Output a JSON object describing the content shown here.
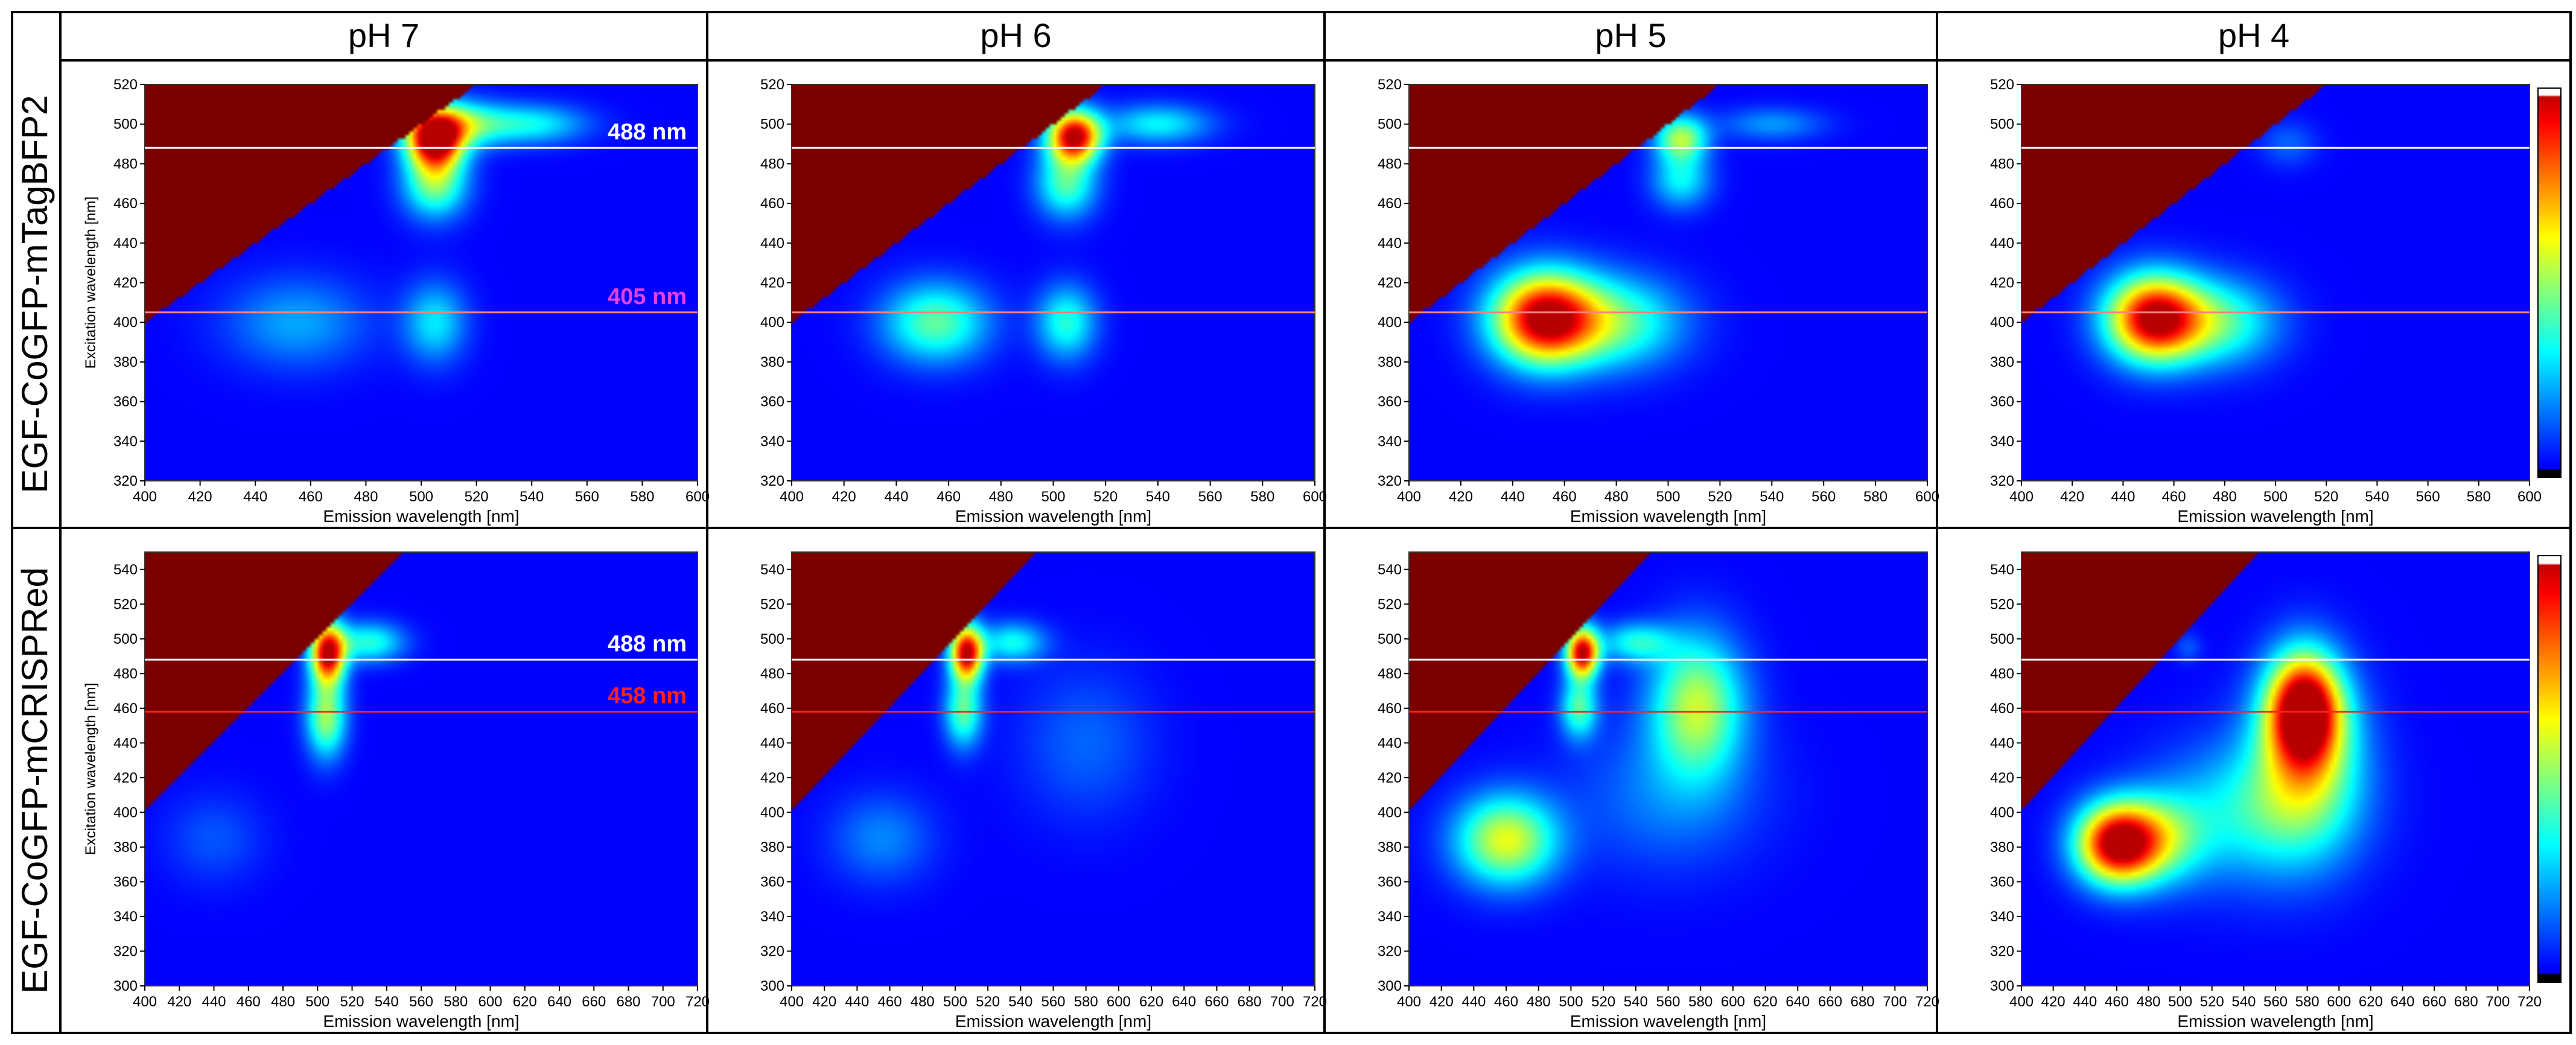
{
  "columns": [
    "pH 7",
    "pH 6",
    "pH 5",
    "pH 4"
  ],
  "rows": [
    "EGF-CoGFP-mTagBFP2",
    "EGF-CoGFP-mCRISPRed"
  ],
  "colors": {
    "background_low": "#0000ff",
    "masked_region": "#7a0000",
    "line_488": "#ffffff",
    "label_405": "#e040e0",
    "line_405": "#ff8080",
    "line_458": "#ff2020",
    "label_458": "#ff2020"
  },
  "annotations": {
    "l488": "488 nm",
    "l405": "405 nm",
    "l458": "458 nm"
  },
  "chart_data": [
    {
      "type": "heatmap",
      "row": "EGF-CoGFP-mTagBFP2",
      "title": "pH 7",
      "xlabel": "Emission wavelength [nm]",
      "ylabel": "Excitation wavelength [nm]",
      "xlim": [
        400,
        600
      ],
      "ylim": [
        320,
        520
      ],
      "xticks": [
        400,
        420,
        440,
        460,
        480,
        500,
        520,
        540,
        560,
        580,
        600
      ],
      "yticks": [
        320,
        340,
        360,
        380,
        400,
        420,
        440,
        460,
        480,
        500,
        520
      ],
      "lines": [
        {
          "y": 488,
          "label": "488 nm"
        },
        {
          "y": 405,
          "label": "405 nm"
        }
      ],
      "blobs": [
        {
          "em": 505,
          "ex": 492,
          "sx": 7,
          "sy": 10,
          "a": 1.0
        },
        {
          "em": 512,
          "ex": 500,
          "sx": 12,
          "sy": 8,
          "a": 0.45
        },
        {
          "em": 540,
          "ex": 500,
          "sx": 14,
          "sy": 7,
          "a": 0.3
        },
        {
          "em": 505,
          "ex": 470,
          "sx": 8,
          "sy": 12,
          "a": 0.45
        },
        {
          "em": 505,
          "ex": 400,
          "sx": 8,
          "sy": 14,
          "a": 0.28
        },
        {
          "em": 455,
          "ex": 400,
          "sx": 18,
          "sy": 16,
          "a": 0.2
        }
      ]
    },
    {
      "type": "heatmap",
      "row": "EGF-CoGFP-mTagBFP2",
      "title": "pH 6",
      "xlabel": "Emission wavelength [nm]",
      "ylabel": "",
      "xlim": [
        400,
        600
      ],
      "ylim": [
        320,
        520
      ],
      "xticks": [
        400,
        420,
        440,
        460,
        480,
        500,
        520,
        540,
        560,
        580,
        600
      ],
      "yticks": [
        320,
        340,
        360,
        380,
        400,
        420,
        440,
        460,
        480,
        500,
        520
      ],
      "lines": [
        {
          "y": 488
        },
        {
          "y": 405
        }
      ],
      "blobs": [
        {
          "em": 508,
          "ex": 494,
          "sx": 7,
          "sy": 9,
          "a": 1.0
        },
        {
          "em": 540,
          "ex": 500,
          "sx": 14,
          "sy": 7,
          "a": 0.3
        },
        {
          "em": 505,
          "ex": 470,
          "sx": 8,
          "sy": 12,
          "a": 0.4
        },
        {
          "em": 505,
          "ex": 400,
          "sx": 8,
          "sy": 13,
          "a": 0.35
        },
        {
          "em": 455,
          "ex": 400,
          "sx": 14,
          "sy": 14,
          "a": 0.42
        }
      ]
    },
    {
      "type": "heatmap",
      "row": "EGF-CoGFP-mTagBFP2",
      "title": "pH 5",
      "xlabel": "Emission wavelength [nm]",
      "ylabel": "",
      "xlim": [
        400,
        600
      ],
      "ylim": [
        320,
        520
      ],
      "xticks": [
        400,
        420,
        440,
        460,
        480,
        500,
        520,
        540,
        560,
        580,
        600
      ],
      "yticks": [
        320,
        340,
        360,
        380,
        400,
        420,
        440,
        460,
        480,
        500,
        520
      ],
      "lines": [
        {
          "y": 488
        },
        {
          "y": 405
        }
      ],
      "blobs": [
        {
          "em": 452,
          "ex": 402,
          "sx": 14,
          "sy": 16,
          "a": 1.0
        },
        {
          "em": 480,
          "ex": 400,
          "sx": 18,
          "sy": 16,
          "a": 0.4
        },
        {
          "em": 505,
          "ex": 493,
          "sx": 7,
          "sy": 8,
          "a": 0.5
        },
        {
          "em": 505,
          "ex": 472,
          "sx": 8,
          "sy": 10,
          "a": 0.3
        },
        {
          "em": 540,
          "ex": 500,
          "sx": 14,
          "sy": 6,
          "a": 0.18
        }
      ]
    },
    {
      "type": "heatmap",
      "row": "EGF-CoGFP-mTagBFP2",
      "title": "pH 4",
      "xlabel": "Emission wavelength [nm]",
      "ylabel": "",
      "xlim": [
        400,
        600
      ],
      "ylim": [
        320,
        520
      ],
      "xticks": [
        400,
        420,
        440,
        460,
        480,
        500,
        520,
        540,
        560,
        580,
        600
      ],
      "yticks": [
        320,
        340,
        360,
        380,
        400,
        420,
        440,
        460,
        480,
        500,
        520
      ],
      "lines": [
        {
          "y": 488
        },
        {
          "y": 405
        }
      ],
      "colorbar": true,
      "blobs": [
        {
          "em": 452,
          "ex": 402,
          "sx": 13,
          "sy": 15,
          "a": 1.0
        },
        {
          "em": 478,
          "ex": 400,
          "sx": 16,
          "sy": 15,
          "a": 0.38
        },
        {
          "em": 505,
          "ex": 490,
          "sx": 8,
          "sy": 8,
          "a": 0.12
        }
      ]
    },
    {
      "type": "heatmap",
      "row": "EGF-CoGFP-mCRISPRed",
      "title": "pH 7",
      "xlabel": "Emission wavelength [nm]",
      "ylabel": "Excitation wavelength [nm]",
      "xlim": [
        400,
        720
      ],
      "ylim": [
        300,
        550
      ],
      "xticks": [
        400,
        420,
        440,
        460,
        480,
        500,
        520,
        540,
        560,
        580,
        600,
        620,
        640,
        660,
        680,
        700,
        720
      ],
      "yticks": [
        300,
        320,
        340,
        360,
        380,
        400,
        420,
        440,
        460,
        480,
        500,
        520,
        540
      ],
      "lines": [
        {
          "y": 488,
          "label": "488 nm"
        },
        {
          "y": 458,
          "label": "458 nm"
        }
      ],
      "blobs": [
        {
          "em": 506,
          "ex": 492,
          "sx": 7,
          "sy": 12,
          "a": 1.0
        },
        {
          "em": 530,
          "ex": 498,
          "sx": 14,
          "sy": 8,
          "a": 0.35
        },
        {
          "em": 505,
          "ex": 455,
          "sx": 8,
          "sy": 16,
          "a": 0.5
        },
        {
          "em": 440,
          "ex": 385,
          "sx": 20,
          "sy": 18,
          "a": 0.1
        }
      ]
    },
    {
      "type": "heatmap",
      "row": "EGF-CoGFP-mCRISPRed",
      "title": "pH 6",
      "xlabel": "Emission wavelength [nm]",
      "ylabel": "",
      "xlim": [
        400,
        720
      ],
      "ylim": [
        300,
        550
      ],
      "xticks": [
        400,
        420,
        440,
        460,
        480,
        500,
        520,
        540,
        560,
        580,
        600,
        620,
        640,
        660,
        680,
        700,
        720
      ],
      "yticks": [
        300,
        320,
        340,
        360,
        380,
        400,
        420,
        440,
        460,
        480,
        500,
        520,
        540
      ],
      "lines": [
        {
          "y": 488
        },
        {
          "y": 458
        }
      ],
      "blobs": [
        {
          "em": 507,
          "ex": 492,
          "sx": 7,
          "sy": 11,
          "a": 1.0
        },
        {
          "em": 535,
          "ex": 498,
          "sx": 14,
          "sy": 8,
          "a": 0.32
        },
        {
          "em": 505,
          "ex": 458,
          "sx": 8,
          "sy": 14,
          "a": 0.42
        },
        {
          "em": 455,
          "ex": 385,
          "sx": 22,
          "sy": 18,
          "a": 0.16
        },
        {
          "em": 580,
          "ex": 440,
          "sx": 28,
          "sy": 30,
          "a": 0.12
        }
      ]
    },
    {
      "type": "heatmap",
      "row": "EGF-CoGFP-mCRISPRed",
      "title": "pH 5",
      "xlabel": "Emission wavelength [nm]",
      "ylabel": "",
      "xlim": [
        400,
        720
      ],
      "ylim": [
        300,
        550
      ],
      "xticks": [
        400,
        420,
        440,
        460,
        480,
        500,
        520,
        540,
        560,
        580,
        600,
        620,
        640,
        660,
        680,
        700,
        720
      ],
      "yticks": [
        300,
        320,
        340,
        360,
        380,
        400,
        420,
        440,
        460,
        480,
        500,
        520,
        540
      ],
      "lines": [
        {
          "y": 488
        },
        {
          "y": 458
        }
      ],
      "blobs": [
        {
          "em": 507,
          "ex": 492,
          "sx": 7,
          "sy": 10,
          "a": 1.0
        },
        {
          "em": 540,
          "ex": 498,
          "sx": 16,
          "sy": 8,
          "a": 0.32
        },
        {
          "em": 505,
          "ex": 460,
          "sx": 8,
          "sy": 12,
          "a": 0.4
        },
        {
          "em": 460,
          "ex": 384,
          "sx": 22,
          "sy": 18,
          "a": 0.58
        },
        {
          "em": 578,
          "ex": 462,
          "sx": 20,
          "sy": 28,
          "a": 0.52
        },
        {
          "em": 560,
          "ex": 410,
          "sx": 40,
          "sy": 30,
          "a": 0.15
        }
      ]
    },
    {
      "type": "heatmap",
      "row": "EGF-CoGFP-mCRISPRed",
      "title": "pH 4",
      "xlabel": "Emission wavelength [nm]",
      "ylabel": "",
      "xlim": [
        400,
        720
      ],
      "ylim": [
        300,
        550
      ],
      "xticks": [
        400,
        420,
        440,
        460,
        480,
        500,
        520,
        540,
        560,
        580,
        600,
        620,
        640,
        660,
        680,
        700,
        720
      ],
      "yticks": [
        300,
        320,
        340,
        360,
        380,
        400,
        420,
        440,
        460,
        480,
        500,
        520,
        540
      ],
      "lines": [
        {
          "y": 488
        },
        {
          "y": 458
        }
      ],
      "colorbar": true,
      "blobs": [
        {
          "em": 460,
          "ex": 382,
          "sx": 18,
          "sy": 16,
          "a": 1.0
        },
        {
          "em": 488,
          "ex": 385,
          "sx": 20,
          "sy": 18,
          "a": 0.35
        },
        {
          "em": 578,
          "ex": 460,
          "sx": 16,
          "sy": 22,
          "a": 1.0
        },
        {
          "em": 580,
          "ex": 430,
          "sx": 24,
          "sy": 34,
          "a": 0.45
        },
        {
          "em": 545,
          "ex": 400,
          "sx": 40,
          "sy": 28,
          "a": 0.3
        },
        {
          "em": 505,
          "ex": 495,
          "sx": 6,
          "sy": 6,
          "a": 0.1
        }
      ]
    }
  ]
}
